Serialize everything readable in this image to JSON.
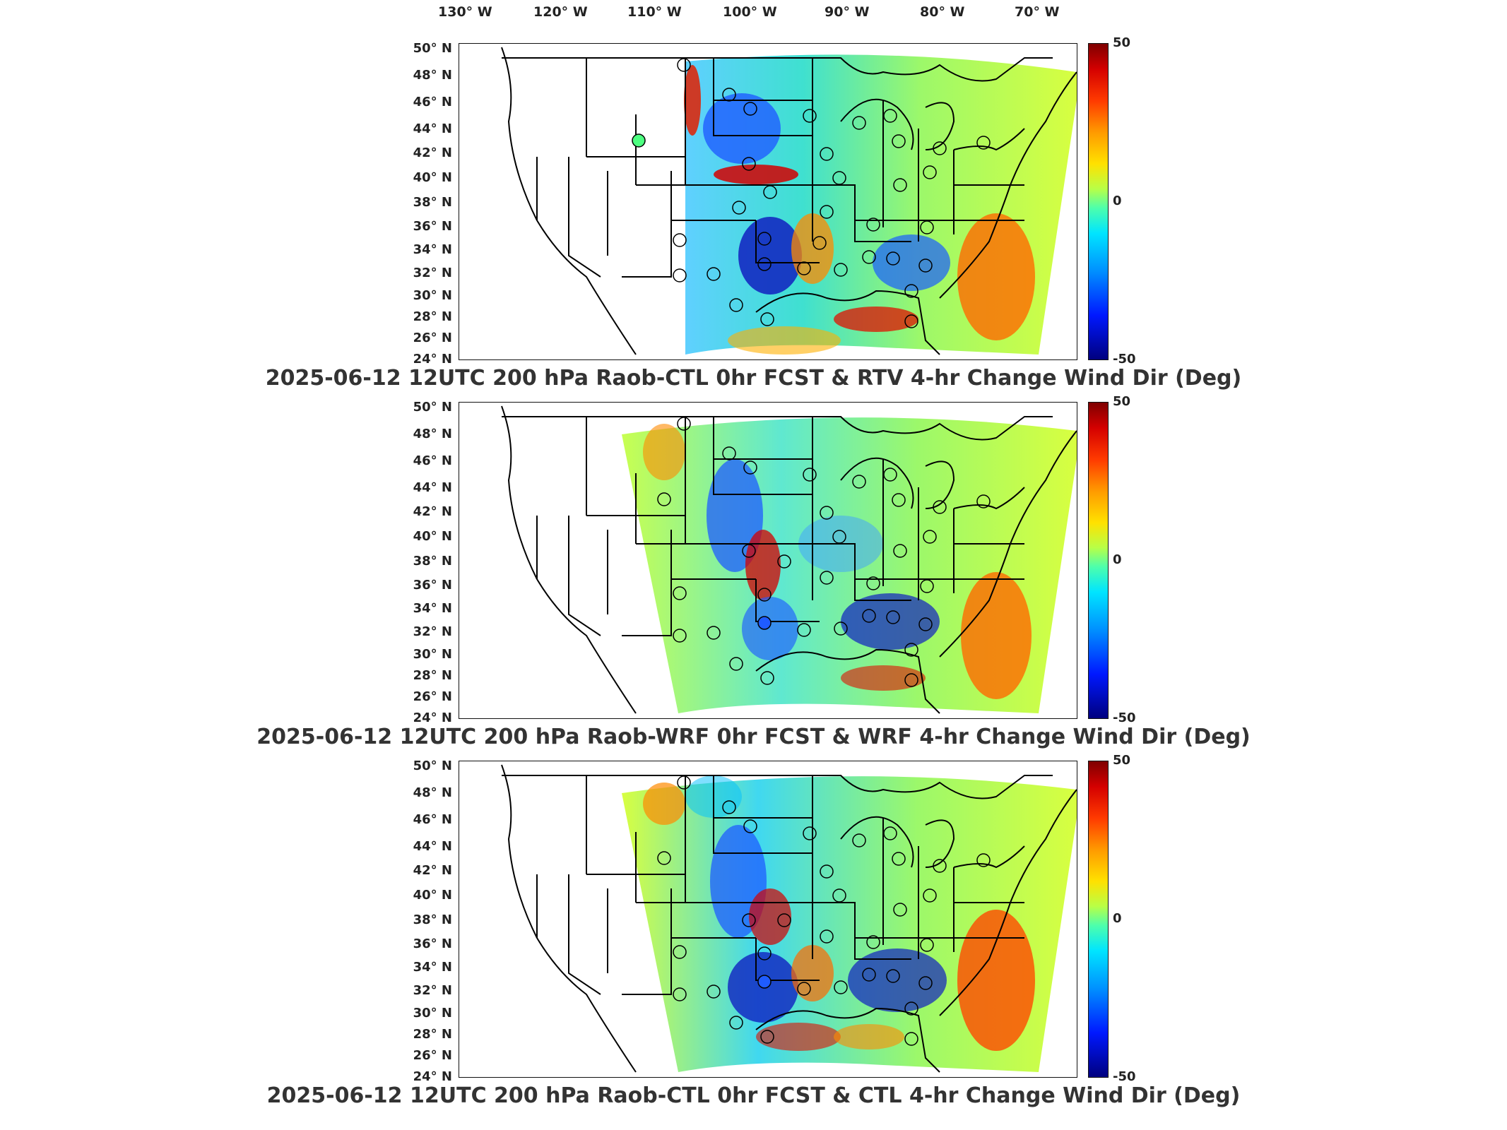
{
  "longitude_labels": [
    "130° W",
    "120° W",
    "110° W",
    "100° W",
    "90° W",
    "80° W",
    "70° W"
  ],
  "latitude_labels": [
    "50° N",
    "48° N",
    "46° N",
    "44° N",
    "42° N",
    "40° N",
    "38° N",
    "36° N",
    "34° N",
    "32° N",
    "30° N",
    "28° N",
    "26° N",
    "24° N"
  ],
  "colorbar": {
    "max": "50",
    "mid": "0",
    "min": "-50",
    "colormap": "jet",
    "colors": {
      "high": "#7f0000",
      "zero": "#4dffac",
      "low": "#00007f"
    }
  },
  "panels": [
    {
      "title": "2025-06-12 12UTC 200 hPa Raob-CTL 0hr FCST & RTV 4-hr Change Wind Dir (Deg)"
    },
    {
      "title": "2025-06-12 12UTC 200 hPa Raob-WRF 0hr FCST & WRF 4-hr Change Wind Dir (Deg)"
    },
    {
      "title": "2025-06-12 12UTC 200 hPa Raob-CTL 0hr FCST & CTL 4-hr Change Wind Dir (Deg)"
    }
  ]
}
